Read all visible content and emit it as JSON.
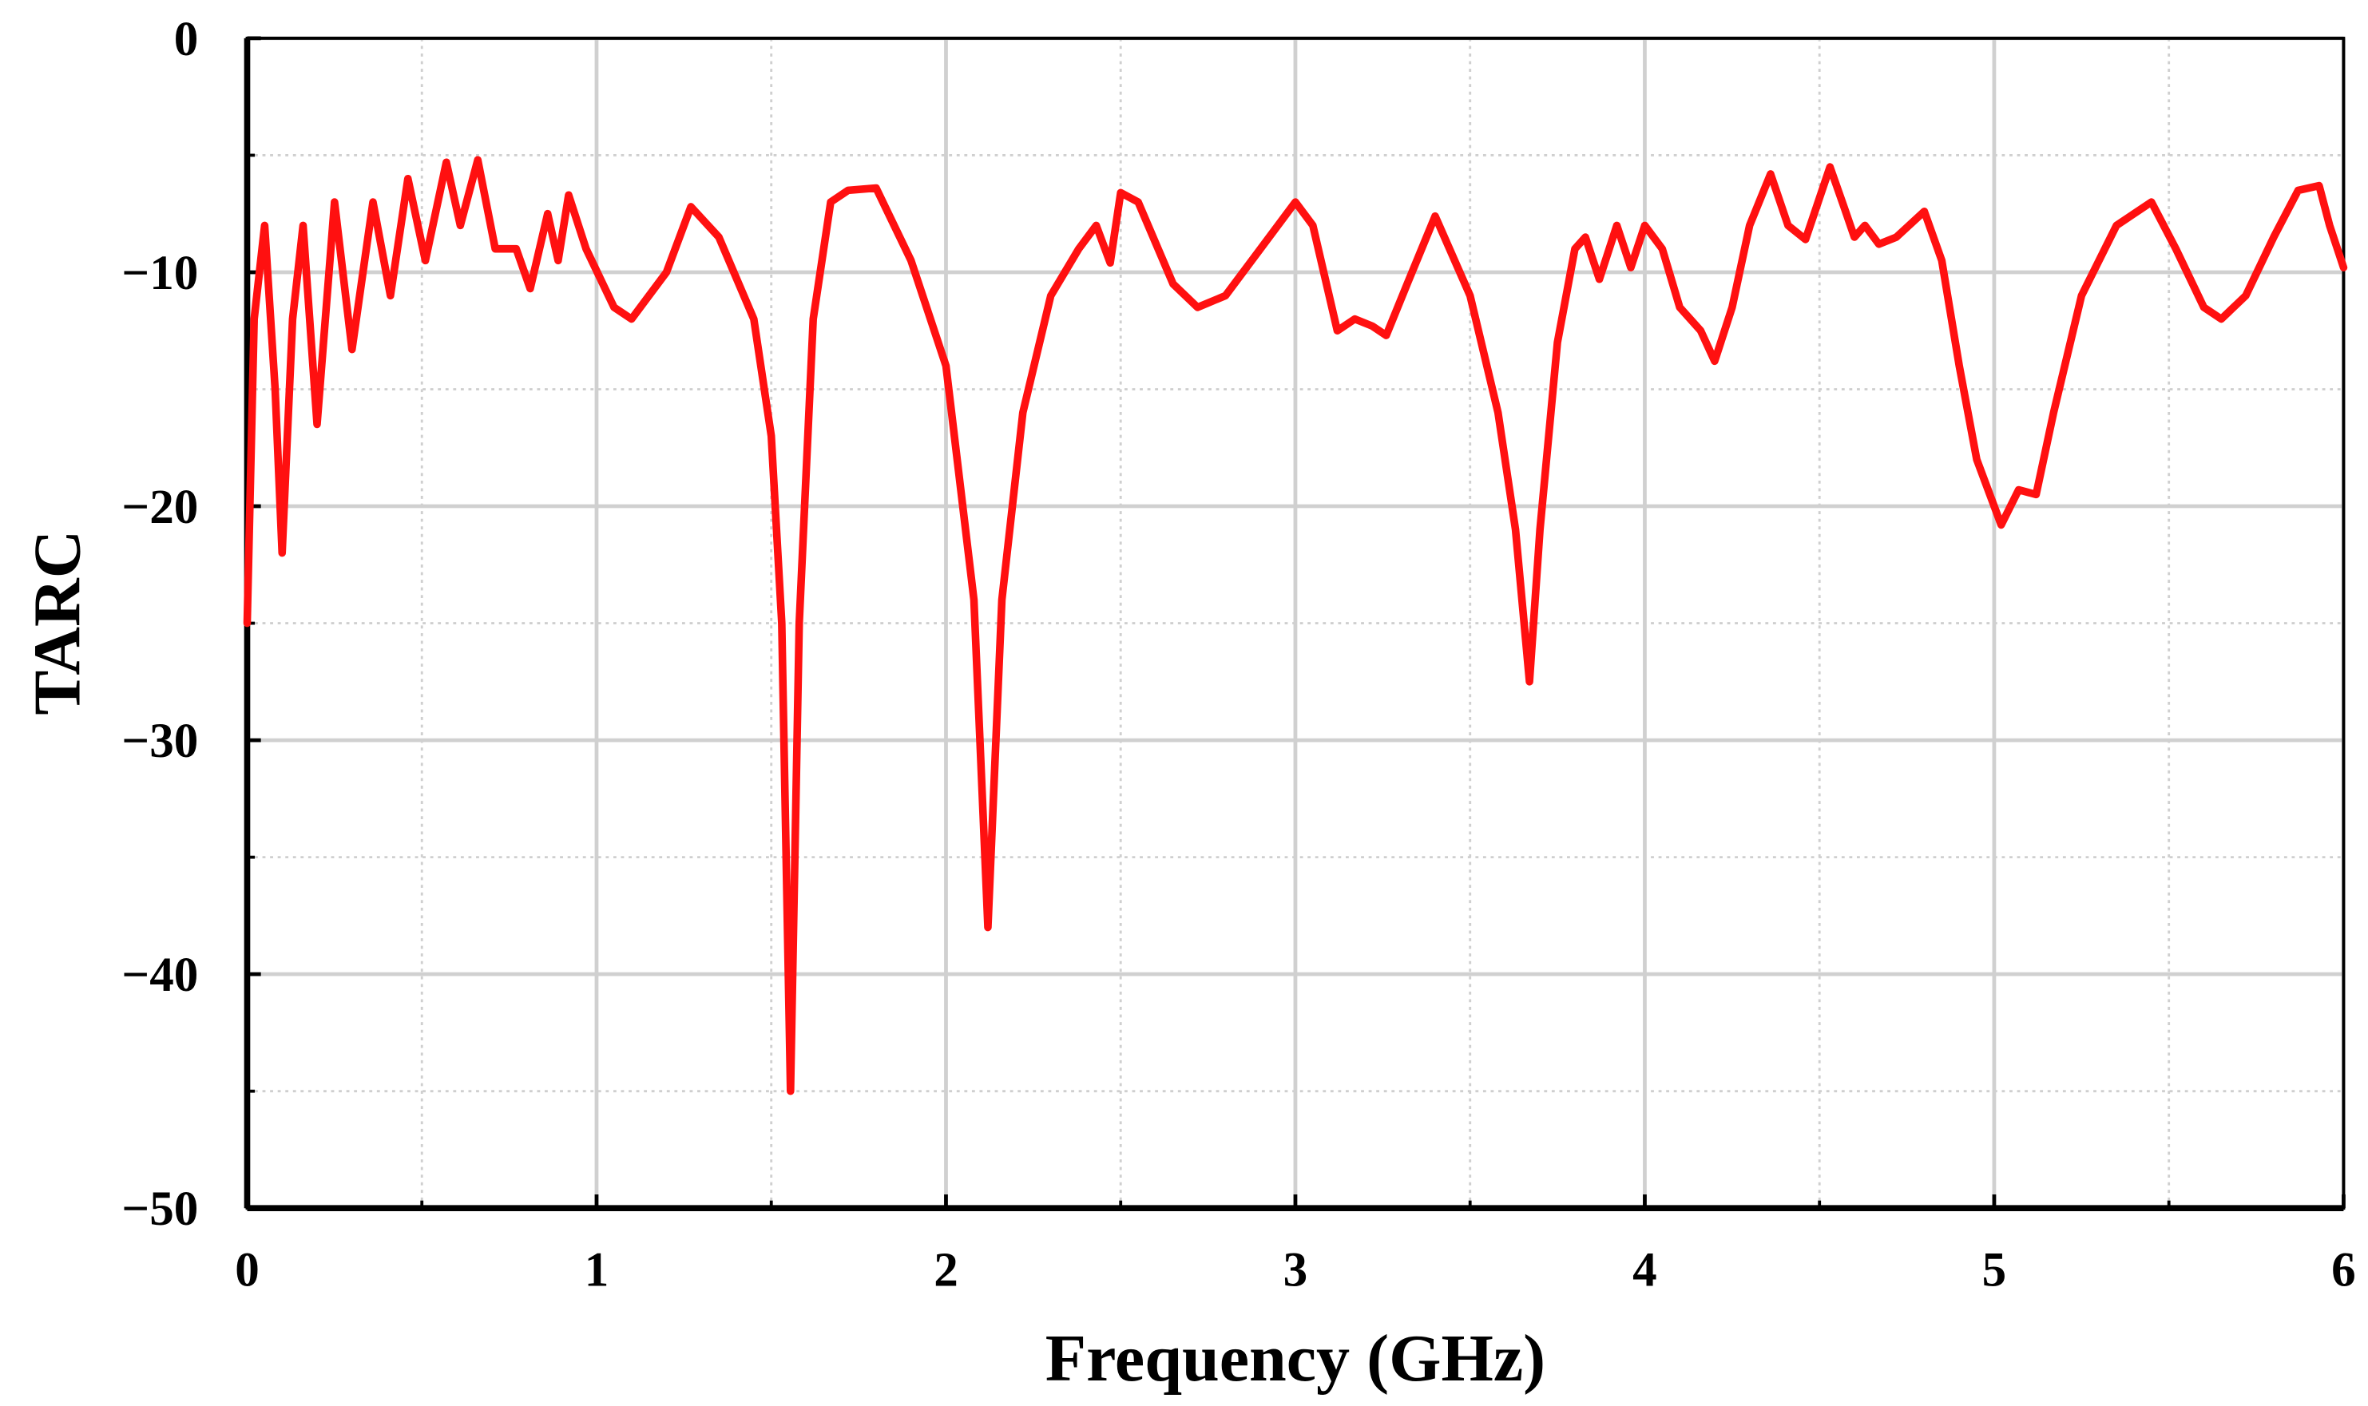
{
  "chart_data": {
    "type": "line",
    "x_label": "Frequency (GHz)",
    "y_label": "TARC",
    "x": [
      0,
      0.02,
      0.05,
      0.08,
      0.1,
      0.13,
      0.16,
      0.2,
      0.25,
      0.3,
      0.36,
      0.41,
      0.46,
      0.51,
      0.57,
      0.61,
      0.66,
      0.71,
      0.77,
      0.81,
      0.86,
      0.89,
      0.92,
      0.97,
      1.05,
      1.1,
      1.2,
      1.27,
      1.35,
      1.45,
      1.5,
      1.53,
      1.555,
      1.58,
      1.62,
      1.67,
      1.72,
      1.8,
      1.9,
      2.0,
      2.08,
      2.12,
      2.16,
      2.22,
      2.3,
      2.38,
      2.43,
      2.47,
      2.5,
      2.55,
      2.65,
      2.72,
      2.8,
      2.9,
      3.0,
      3.05,
      3.12,
      3.17,
      3.22,
      3.26,
      3.32,
      3.4,
      3.5,
      3.58,
      3.63,
      3.67,
      3.7,
      3.75,
      3.8,
      3.83,
      3.87,
      3.92,
      3.96,
      4.0,
      4.05,
      4.1,
      4.16,
      4.2,
      4.25,
      4.3,
      4.36,
      4.41,
      4.46,
      4.53,
      4.57,
      4.6,
      4.63,
      4.67,
      4.72,
      4.8,
      4.85,
      4.9,
      4.95,
      5.02,
      5.07,
      5.12,
      5.17,
      5.25,
      5.35,
      5.45,
      5.52,
      5.6,
      5.65,
      5.72,
      5.8,
      5.87,
      5.93,
      5.96,
      6.0
    ],
    "series": [
      {
        "name": "TARC",
        "color": "#ff1010",
        "values": [
          -25,
          -12,
          -8,
          -15,
          -22,
          -12,
          -8,
          -16.5,
          -7,
          -13.3,
          -7,
          -11,
          -6,
          -9.5,
          -5.3,
          -8,
          -5.2,
          -9,
          -9,
          -10.7,
          -7.5,
          -9.5,
          -6.7,
          -9,
          -11.5,
          -12,
          -10,
          -7.2,
          -8.5,
          -12,
          -17,
          -25,
          -45,
          -25,
          -12,
          -7,
          -6.5,
          -6.4,
          -9.5,
          -14,
          -24,
          -38,
          -24,
          -16,
          -11,
          -9,
          -8,
          -9.6,
          -6.6,
          -7,
          -10.5,
          -11.5,
          -11,
          -9,
          -7,
          -8,
          -12.5,
          -12,
          -12.3,
          -12.7,
          -10.5,
          -7.6,
          -11,
          -16,
          -21,
          -27.5,
          -21,
          -13,
          -9,
          -8.5,
          -10.3,
          -8,
          -9.8,
          -8,
          -9,
          -11.5,
          -12.5,
          -13.8,
          -11.5,
          -8,
          -5.8,
          -8,
          -8.6,
          -5.5,
          -7.2,
          -8.5,
          -8,
          -8.8,
          -8.5,
          -7.4,
          -9.5,
          -14,
          -18,
          -20.8,
          -19.3,
          -19.5,
          -16,
          -11,
          -8,
          -7,
          -9,
          -11.5,
          -12,
          -11,
          -8.5,
          -6.5,
          -6.3,
          -8,
          -9.8
        ]
      }
    ],
    "xlim": [
      0,
      6
    ],
    "ylim": [
      -50,
      0
    ],
    "xticks": [
      0,
      1,
      2,
      3,
      4,
      5,
      6
    ],
    "yticks": [
      0,
      {
        "value": -10,
        "label": "−10"
      },
      {
        "value": -20,
        "label": "−20"
      },
      {
        "value": -30,
        "label": "−30"
      },
      {
        "value": -40,
        "label": "−40"
      },
      {
        "value": -50,
        "label": "−50"
      }
    ],
    "x_minor_ticks": [
      0.5,
      1.5,
      2.5,
      3.5,
      4.5,
      5.5
    ],
    "y_minor_ticks": [
      -5,
      -15,
      -25,
      -35,
      -45
    ],
    "grid": true
  }
}
